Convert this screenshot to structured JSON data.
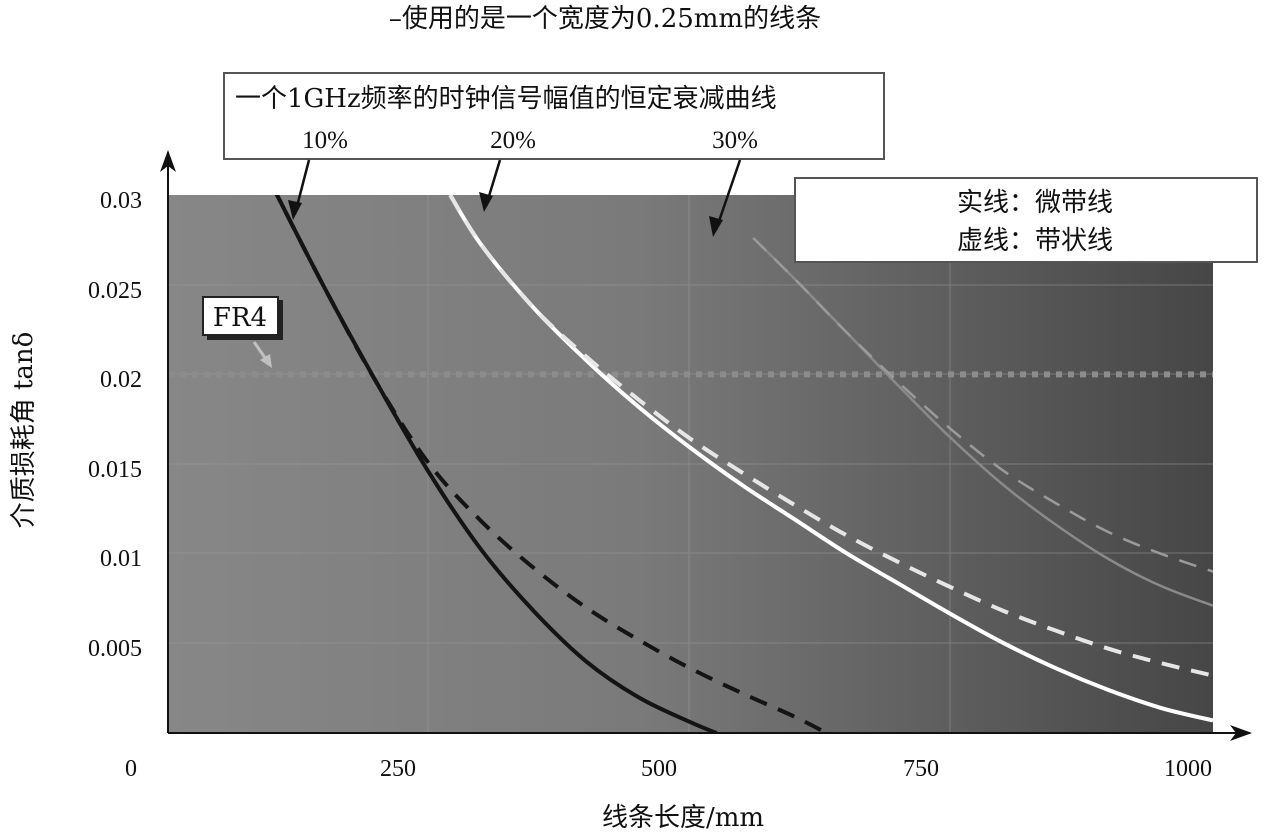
{
  "chart_data": {
    "type": "line",
    "title": "–使用的是一个宽度为0.25mm的线条",
    "subtitle": "一个1GHz频率的时钟信号幅值的恒定衰减曲线",
    "xlabel": "线条长度/mm",
    "ylabel": "介质损耗角 tanδ",
    "xlim": [
      0,
      1000
    ],
    "ylim": [
      0,
      0.03
    ],
    "x_ticks": [
      "0",
      "250",
      "500",
      "750",
      "1000"
    ],
    "y_ticks": [
      "0.005",
      "0.01",
      "0.015",
      "0.02",
      "0.025",
      "0.03"
    ],
    "grid": true,
    "legend": {
      "solid": "实线：微带线",
      "dashed": "虚线：带状线"
    },
    "series": [
      {
        "name": "10%",
        "style": "solid",
        "color": "#141414",
        "x": [
          100,
          150,
          200,
          250,
          300,
          350,
          400,
          450,
          500,
          525
        ],
        "y": [
          0.0305,
          0.0248,
          0.0195,
          0.0145,
          0.0102,
          0.0068,
          0.004,
          0.002,
          0.0006,
          0.0
        ]
      },
      {
        "name": "10%",
        "style": "dashed",
        "color": "#141414",
        "x": [
          100,
          150,
          200,
          250,
          300,
          350,
          400,
          450,
          500,
          550,
          600,
          630
        ],
        "y": [
          0.0305,
          0.0248,
          0.0195,
          0.015,
          0.0118,
          0.0092,
          0.007,
          0.0052,
          0.0036,
          0.0022,
          0.0009,
          0.0
        ]
      },
      {
        "name": "20%",
        "style": "solid",
        "color": "#ffffff",
        "x": [
          270,
          300,
          350,
          400,
          450,
          500,
          550,
          600,
          650,
          700,
          750,
          800,
          850,
          900,
          950,
          1000
        ],
        "y": [
          0.03,
          0.0272,
          0.0237,
          0.0208,
          0.0182,
          0.0159,
          0.0138,
          0.0119,
          0.01,
          0.0083,
          0.0066,
          0.005,
          0.0036,
          0.0024,
          0.0014,
          0.0007
        ]
      },
      {
        "name": "20%",
        "style": "dashed",
        "color": "#e6e6e6",
        "x": [
          270,
          300,
          350,
          400,
          450,
          500,
          550,
          600,
          650,
          700,
          750,
          800,
          850,
          900,
          950,
          1000
        ],
        "y": [
          0.03,
          0.0272,
          0.0237,
          0.021,
          0.0186,
          0.0164,
          0.0145,
          0.0127,
          0.011,
          0.0095,
          0.0081,
          0.0068,
          0.0057,
          0.0047,
          0.0039,
          0.0032
        ]
      },
      {
        "name": "30%",
        "style": "solid",
        "color": "#8a8a8a",
        "x": [
          560,
          600,
          650,
          700,
          750,
          800,
          850,
          900,
          950,
          1000
        ],
        "y": [
          0.0276,
          0.0253,
          0.0223,
          0.0193,
          0.0164,
          0.0138,
          0.0116,
          0.0097,
          0.0082,
          0.0071
        ]
      },
      {
        "name": "30%",
        "style": "dashed",
        "color": "#9a9a9a",
        "x": [
          560,
          600,
          650,
          700,
          750,
          800,
          850,
          900,
          950,
          1000
        ],
        "y": [
          0.0276,
          0.0253,
          0.0223,
          0.0195,
          0.0169,
          0.0146,
          0.0128,
          0.0112,
          0.01,
          0.009
        ]
      }
    ],
    "reference_line": {
      "label": "FR4",
      "y": 0.02,
      "style": "dotted",
      "color": "#8c8c8c"
    },
    "annotations": [
      "10%",
      "20%",
      "30%"
    ]
  }
}
